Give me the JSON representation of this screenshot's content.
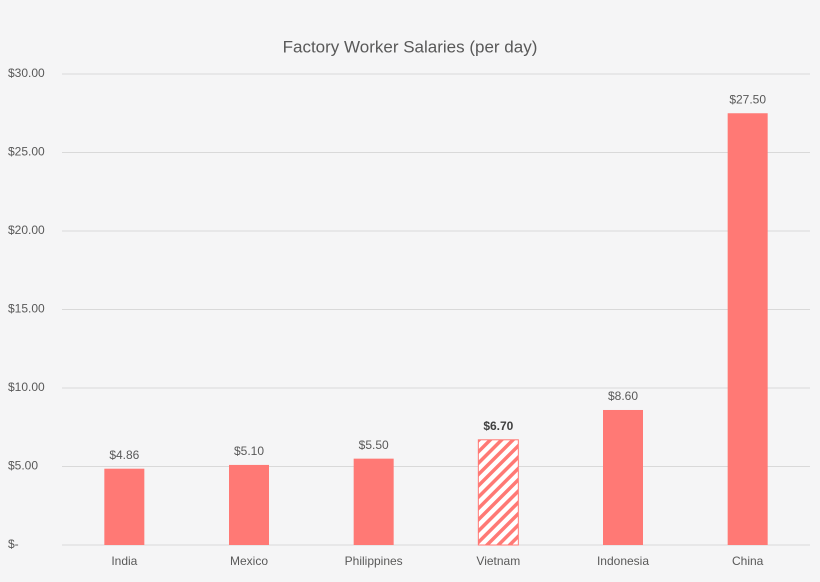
{
  "chart_data": {
    "type": "bar",
    "title": "Factory Worker Salaries (per day)",
    "categories": [
      "India",
      "Mexico",
      "Philippines",
      "Vietnam",
      "Indonesia",
      "China"
    ],
    "values": [
      4.86,
      5.1,
      5.5,
      6.7,
      8.6,
      27.5
    ],
    "value_labels": [
      "$4.86",
      "$5.10",
      "$5.50",
      "$6.70",
      "$8.60",
      "$27.50"
    ],
    "color": "#ff7975",
    "hatched_category": "Vietnam",
    "ylim": [
      0,
      30
    ],
    "yticks": [
      {
        "value": 0,
        "label": "$-"
      },
      {
        "value": 5,
        "label": "$5.00"
      },
      {
        "value": 10,
        "label": "$10.00"
      },
      {
        "value": 15,
        "label": "$15.00"
      },
      {
        "value": 20,
        "label": "$20.00"
      },
      {
        "value": 25,
        "label": "$25.00"
      },
      {
        "value": 30,
        "label": "$30.00"
      }
    ],
    "grid": true
  }
}
